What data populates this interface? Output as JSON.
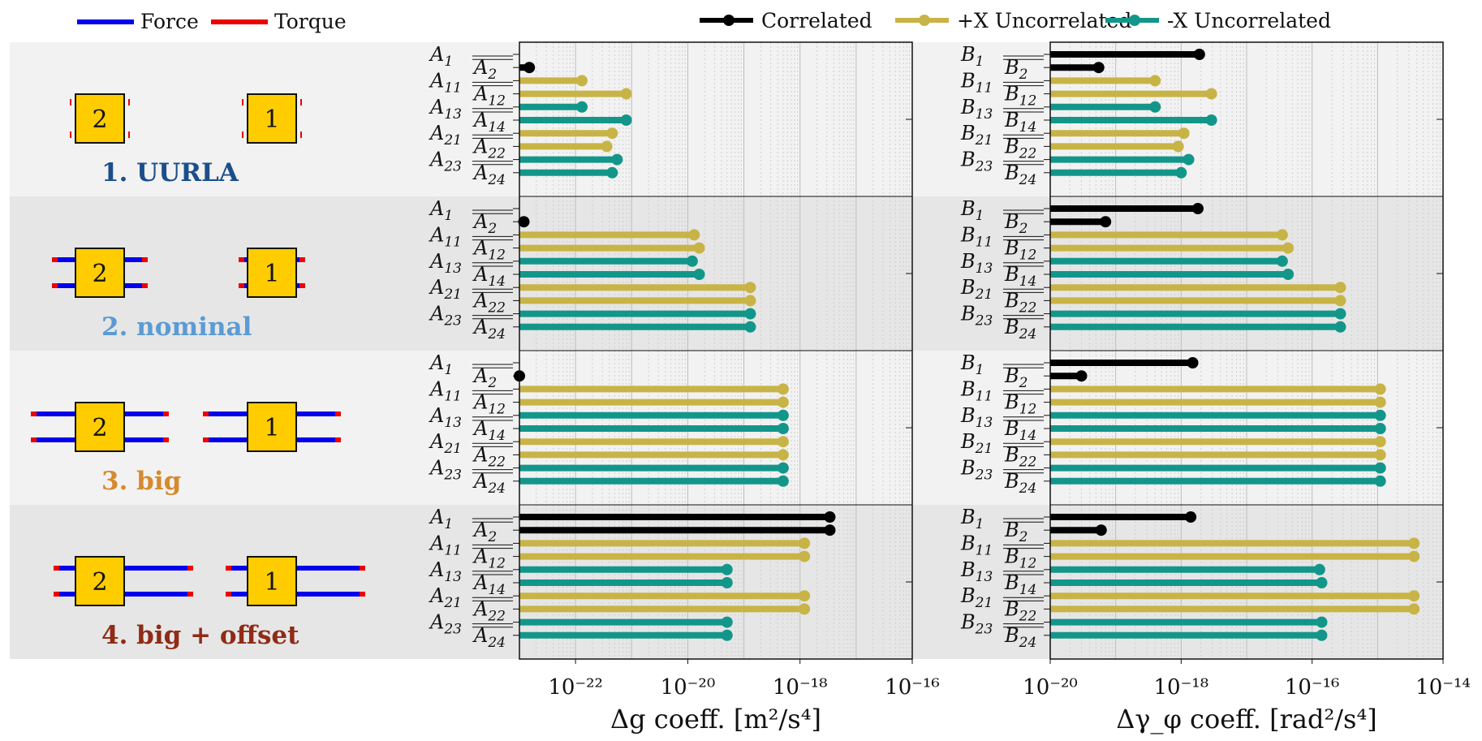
{
  "legend_left": [
    {
      "label": "Force",
      "color": "#0000ee"
    },
    {
      "label": "Torque",
      "color": "#ee0000"
    }
  ],
  "legend_right": [
    {
      "label": "Correlated",
      "color": "#000000"
    },
    {
      "label": "+X Uncorrelated",
      "color": "#c8b446"
    },
    {
      "label": "-X Uncorrelated",
      "color": "#13968a"
    }
  ],
  "scenarios": [
    {
      "label": "1.  UURLA",
      "color": "#1b4f8a"
    },
    {
      "label": "2.  nominal",
      "color": "#5b9bd5"
    },
    {
      "label": "3.  big",
      "color": "#d68a2e"
    },
    {
      "label": "4.  big + offset",
      "color": "#8f2b16"
    }
  ],
  "box_labels": [
    "2",
    "1"
  ],
  "chart_data": [
    {
      "type": "bar",
      "orientation": "horizontal",
      "xscale": "log",
      "xlabel": "Δg coeff.  [m²/s⁴]",
      "xlim": [
        1e-23,
        1e-16
      ],
      "xticks": [
        "10⁻²²",
        "10⁻²⁰",
        "10⁻¹⁸",
        "10⁻¹⁶"
      ],
      "row_labels": [
        "A1",
        "A2",
        "A11",
        "A12",
        "A13",
        "A14",
        "A21",
        "A22",
        "A23",
        "A24"
      ],
      "row_groups": [
        "correlated",
        "correlated",
        "+x",
        "+x",
        "-x",
        "-x",
        "+x",
        "+x",
        "-x",
        "-x"
      ],
      "groups": [
        {
          "scenario": "1.  UURLA",
          "values": [
            null,
            1.5e-23,
            1.3e-22,
            8e-22,
            1.3e-22,
            8e-22,
            4.5e-22,
            3.6e-22,
            5.5e-22,
            4.5e-22
          ]
        },
        {
          "scenario": "2.  nominal",
          "values": [
            null,
            1.2e-23,
            1.3e-20,
            1.6e-20,
            1.2e-20,
            1.6e-20,
            1.3e-19,
            1.3e-19,
            1.3e-19,
            1.3e-19
          ]
        },
        {
          "scenario": "3.  big",
          "values": [
            null,
            1e-23,
            5e-19,
            5e-19,
            5e-19,
            5e-19,
            5e-19,
            5e-19,
            5e-19,
            5e-19
          ]
        },
        {
          "scenario": "4.  big + offset",
          "values": [
            3.4e-18,
            3.4e-18,
            1.2e-18,
            1.2e-18,
            5e-20,
            5e-20,
            1.2e-18,
            1.2e-18,
            5e-20,
            5e-20
          ]
        }
      ]
    },
    {
      "type": "bar",
      "orientation": "horizontal",
      "xscale": "log",
      "xlabel": "Δγ_φ coeff.  [rad²/s⁴]",
      "xlim": [
        1e-20,
        1e-14
      ],
      "xticks": [
        "10⁻²⁰",
        "10⁻¹⁸",
        "10⁻¹⁶",
        "10⁻¹⁴"
      ],
      "row_labels": [
        "B1",
        "B2",
        "B11",
        "B12",
        "B13",
        "B14",
        "B21",
        "B22",
        "B23",
        "B24"
      ],
      "row_groups": [
        "correlated",
        "correlated",
        "+x",
        "+x",
        "-x",
        "-x",
        "+x",
        "+x",
        "-x",
        "-x"
      ],
      "groups": [
        {
          "scenario": "1.  UURLA",
          "values": [
            1.9e-18,
            5.5e-20,
            4e-19,
            2.9e-18,
            4e-19,
            2.9e-18,
            1.1e-18,
            9e-19,
            1.3e-18,
            1e-18
          ]
        },
        {
          "scenario": "2.  nominal",
          "values": [
            1.8e-18,
            7e-20,
            3.5e-17,
            4.3e-17,
            3.5e-17,
            4.3e-17,
            2.7e-16,
            2.7e-16,
            2.7e-16,
            2.7e-16
          ]
        },
        {
          "scenario": "3.  big",
          "values": [
            1.5e-18,
            3e-20,
            1.1e-15,
            1.1e-15,
            1.1e-15,
            1.1e-15,
            1.1e-15,
            1.1e-15,
            1.1e-15,
            1.1e-15
          ]
        },
        {
          "scenario": "4.  big + offset",
          "values": [
            1.4e-18,
            6e-20,
            3.6e-15,
            3.6e-15,
            1.3e-16,
            1.4e-16,
            3.6e-15,
            3.6e-15,
            1.4e-16,
            1.4e-16
          ]
        }
      ]
    }
  ]
}
